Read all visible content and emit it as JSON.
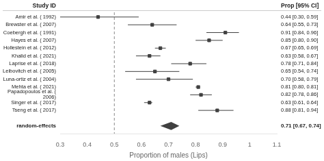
{
  "chart_data": {
    "type": "forest",
    "xlabel": "Proportion of males (Lips)",
    "column_headers": [
      "Study ID",
      "Prop [95% CI]"
    ],
    "categories": [
      "Amir et al. ( 1992)",
      "Brewster et al. ( 2007)",
      "Coebergh et al. ( 1991)",
      "Hayes et al. ( 2007)",
      "Hollestein et al. ( 2012)",
      "Khalid et al. ( 2021)",
      "Laprise et al. ( 2018)",
      "Leibovitch et al. ( 2005)",
      "Luna-ortiz et al. ( 2004)",
      "Mehta et al. ( 2021)",
      "Papadopoulos et al. (\n2006)",
      "Singer et al. ( 2017)",
      "Tseng et al. ( 2017)"
    ],
    "values": [
      0.44,
      0.64,
      0.91,
      0.85,
      0.67,
      0.63,
      0.78,
      0.65,
      0.7,
      0.81,
      0.82,
      0.63,
      0.88
    ],
    "ci_low": [
      0.3,
      0.55,
      0.84,
      0.8,
      0.65,
      0.58,
      0.71,
      0.54,
      0.58,
      0.8,
      0.78,
      0.61,
      0.81
    ],
    "ci_high": [
      0.59,
      0.73,
      0.96,
      0.9,
      0.69,
      0.67,
      0.84,
      0.74,
      0.79,
      0.81,
      0.86,
      0.64,
      0.94
    ],
    "value_labels": [
      "0.44 [0.30, 0.59]",
      "0.64 [0.55, 0.73]",
      "0.91 [0.84, 0.96]",
      "0.85 [0.80, 0.90]",
      "0.67 [0.65, 0.69]",
      "0.63 [0.58, 0.67]",
      "0.78 [0.71, 0.84]",
      "0.65 [0.54, 0.74]",
      "0.70 [0.58, 0.79]",
      "0.81 [0.80, 0.81]",
      "0.82 [0.78, 0.86]",
      "0.63 [0.61, 0.64]",
      "0.88 [0.81, 0.94]"
    ],
    "summary": {
      "label": "random-effects",
      "value": 0.71,
      "ci_low": 0.67,
      "ci_high": 0.74,
      "value_label": "0.71 [0.67, 0.74]"
    },
    "vline": 0.5,
    "xlim": [
      0.3,
      1.1
    ],
    "xticks": [
      0.3,
      0.4,
      0.5,
      0.6,
      0.7,
      0.8,
      0.9,
      1,
      1.1
    ],
    "color": "#404040",
    "marker": "square",
    "grid": false,
    "tick_labels": "x"
  }
}
